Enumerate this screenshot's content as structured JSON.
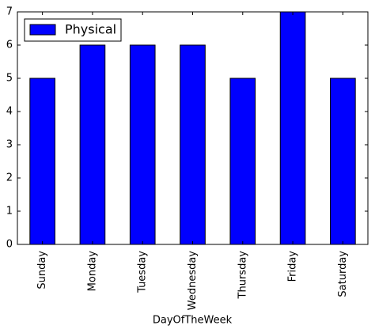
{
  "chart_data": {
    "type": "bar",
    "categories": [
      "Sunday",
      "Monday",
      "Tuesday",
      "Wednesday",
      "Thursday",
      "Friday",
      "Saturday"
    ],
    "series": [
      {
        "name": "Physical",
        "color": "#0000ff",
        "values": [
          5,
          6,
          6,
          6,
          5,
          7,
          5
        ]
      }
    ],
    "x_label": "DayOfTheWeek",
    "ylim": [
      0,
      7
    ],
    "yticks": [
      0,
      1,
      2,
      3,
      4,
      5,
      6,
      7
    ],
    "legend": "upper left"
  }
}
